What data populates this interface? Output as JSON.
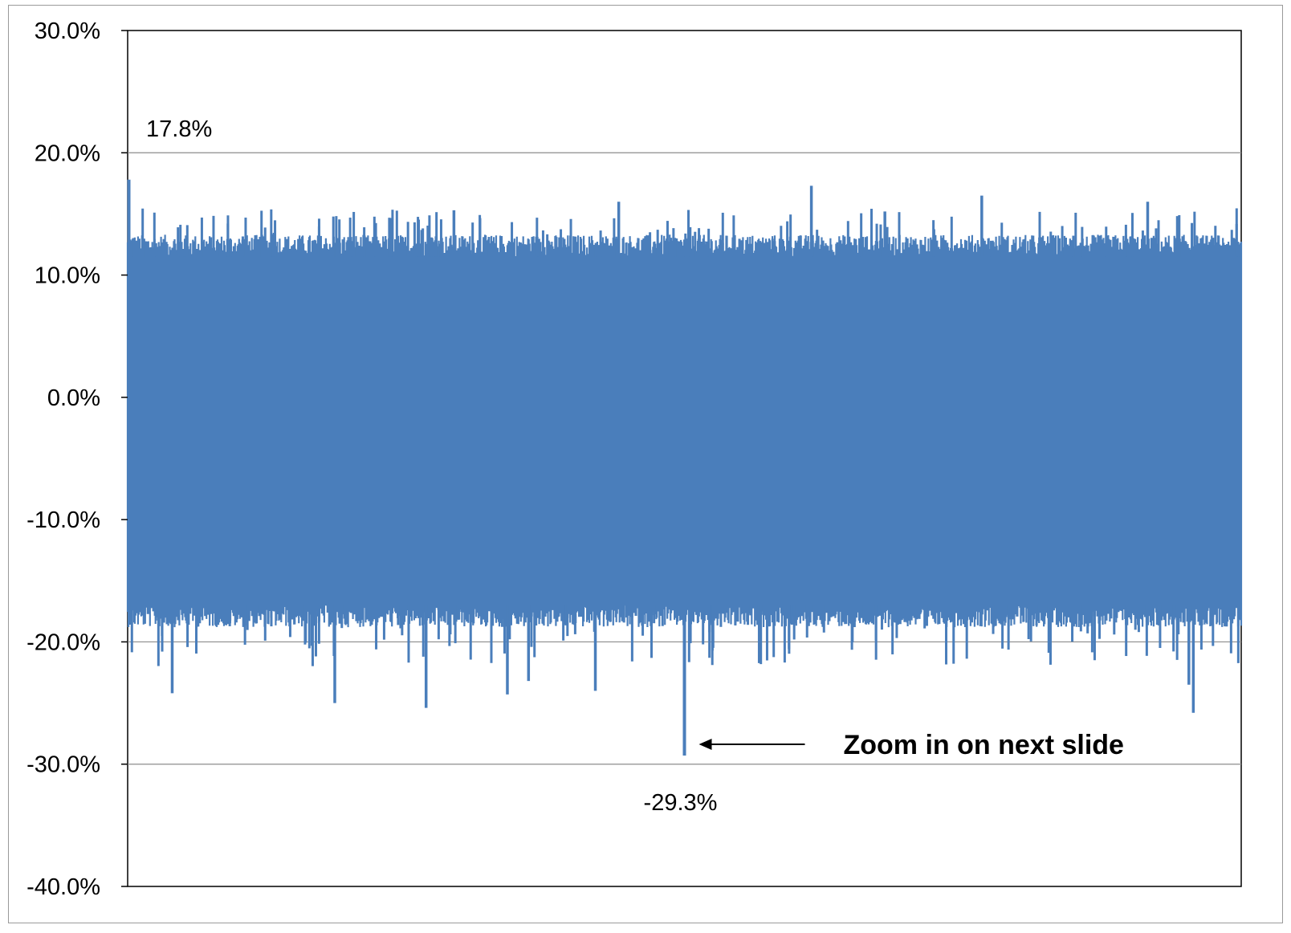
{
  "chart_data": {
    "type": "line",
    "title": "",
    "xlabel": "",
    "ylabel": "",
    "ylim": [
      -40.0,
      30.0
    ],
    "y_tick_values": [
      30,
      20,
      10,
      0,
      -10,
      -20,
      -30,
      -40
    ],
    "y_tick_labels": [
      "30.0%",
      "20.0%",
      "10.0%",
      "0.0%",
      "-10.0%",
      "-20.0%",
      "-30.0%",
      "-40.0%"
    ],
    "gridlines": "horizontal",
    "legend": "none",
    "series_color": "#4a7ebb",
    "series": [
      {
        "x_range": [
          0,
          1
        ],
        "band_upper_typical": 11.5,
        "band_lower_typical": -17.0,
        "max": {
          "x": 0.0,
          "value": 17.8
        },
        "min": {
          "x": 0.5,
          "value": -29.3
        },
        "notable_spikes": [
          {
            "x": 0.614,
            "value": 17.3
          },
          {
            "x": 0.767,
            "value": 16.5
          },
          {
            "x": 0.441,
            "value": 16.0
          },
          {
            "x": 0.916,
            "value": 16.0
          },
          {
            "x": 0.293,
            "value": 15.3
          },
          {
            "x": 0.68,
            "value": 15.2
          },
          {
            "x": 0.04,
            "value": -24.2
          },
          {
            "x": 0.186,
            "value": -25.0
          },
          {
            "x": 0.268,
            "value": -25.4
          },
          {
            "x": 0.341,
            "value": -24.3
          },
          {
            "x": 0.42,
            "value": -24.0
          },
          {
            "x": 0.957,
            "value": -25.8
          },
          {
            "x": 0.953,
            "value": -23.5
          },
          {
            "x": 0.36,
            "value": -23.2
          }
        ]
      }
    ],
    "annotations": {
      "max_label": "17.8%",
      "min_label": "-29.3%",
      "note": "Zoom in on next slide"
    }
  }
}
